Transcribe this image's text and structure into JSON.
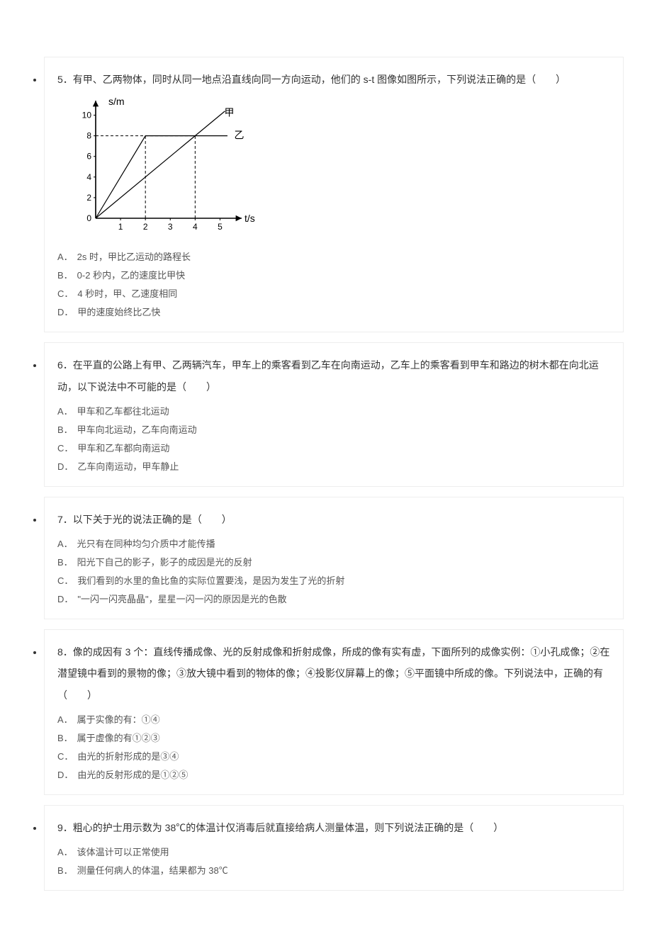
{
  "page_marker_color": "#cccccc",
  "border_color": "#eeeeee",
  "questions": [
    {
      "num": "5",
      "stem": "．有甲、乙两物体，同时从同一地点沿直线向同一方向运动，他们的 s-t 图像如图所示，下列说法正确的是（　　）",
      "has_chart": true,
      "chart": {
        "ylabel": "s/m",
        "xlabel": "t/s",
        "x_ticks": [
          1,
          2,
          3,
          4,
          5
        ],
        "y_ticks": [
          0,
          2,
          4,
          6,
          8,
          10
        ],
        "xlim": [
          0,
          5.7
        ],
        "ylim": [
          0,
          11
        ],
        "series": [
          {
            "name": "甲",
            "type": "line",
            "points": [
              [
                0,
                0
              ],
              [
                4,
                8
              ],
              [
                5.2,
                10.4
              ]
            ],
            "color": "#000000",
            "width": 1.2
          },
          {
            "name": "乙",
            "type": "piecewise",
            "points": [
              [
                0,
                0
              ],
              [
                2,
                8
              ],
              [
                5.3,
                8
              ]
            ],
            "color": "#000000",
            "width": 1.2
          }
        ],
        "guide_lines": [
          {
            "from": [
              0,
              8
            ],
            "to": [
              4,
              8
            ],
            "dash": true,
            "color": "#000000"
          },
          {
            "from": [
              2,
              0
            ],
            "to": [
              2,
              8
            ],
            "dash": true,
            "color": "#000000"
          },
          {
            "from": [
              4,
              0
            ],
            "to": [
              4,
              8
            ],
            "dash": true,
            "color": "#000000"
          }
        ],
        "label_positions": {
          "甲": [
            5.0,
            10.2
          ],
          "乙": [
            5.4,
            8.0
          ]
        },
        "axis_color": "#000000",
        "tick_fontsize": 12,
        "background": "#ffffff"
      },
      "options": [
        {
          "label": "A．",
          "text": "2s 时，甲比乙运动的路程长"
        },
        {
          "label": "B．",
          "text": "0-2 秒内，乙的速度比甲快"
        },
        {
          "label": "C．",
          "text": "4 秒时，甲、乙速度相同"
        },
        {
          "label": "D．",
          "text": "甲的速度始终比乙快"
        }
      ]
    },
    {
      "num": "6",
      "stem": "．在平直的公路上有甲、乙两辆汽车，甲车上的乘客看到乙车在向南运动，乙车上的乘客看到甲车和路边的树木都在向北运动，以下说法中不可能的是（　　）",
      "has_chart": false,
      "options": [
        {
          "label": "A．",
          "text": "甲车和乙车都往北运动"
        },
        {
          "label": "B．",
          "text": "甲车向北运动，乙车向南运动"
        },
        {
          "label": "C．",
          "text": "甲车和乙车都向南运动"
        },
        {
          "label": "D．",
          "text": "乙车向南运动，甲车静止"
        }
      ]
    },
    {
      "num": "7",
      "stem": "．以下关于光的说法正确的是（　　）",
      "has_chart": false,
      "options": [
        {
          "label": "A．",
          "text": "光只有在同种均匀介质中才能传播"
        },
        {
          "label": "B．",
          "text": "阳光下自己的影子，影子的成因是光的反射"
        },
        {
          "label": "C．",
          "text": "我们看到的水里的鱼比鱼的实际位置要浅，是因为发生了光的折射"
        },
        {
          "label": "D．",
          "text": "\"一闪一闪亮晶晶\"，星星一闪一闪的原因是光的色散"
        }
      ]
    },
    {
      "num": "8",
      "stem": "．像的成因有 3 个：直线传播成像、光的反射成像和折射成像，所成的像有实有虚，下面所列的成像实例：①小孔成像；②在潜望镜中看到的景物的像；③放大镜中看到的物体的像；④投影仪屏幕上的像；⑤平面镜中所成的像。下列说法中，正确的有（　　）",
      "has_chart": false,
      "options": [
        {
          "label": "A．",
          "text": "属于实像的有：①④"
        },
        {
          "label": "B．",
          "text": "属于虚像的有①②③"
        },
        {
          "label": "C．",
          "text": "由光的折射形成的是③④"
        },
        {
          "label": "D．",
          "text": "由光的反射形成的是①②⑤"
        }
      ]
    },
    {
      "num": "9",
      "stem": "．粗心的护士用示数为 38℃的体温计仅消毒后就直接给病人测量体温，则下列说法正确的是（　　）",
      "has_chart": false,
      "options": [
        {
          "label": "A．",
          "text": "该体温计可以正常使用"
        },
        {
          "label": "B．",
          "text": "测量任何病人的体温，结果都为 38℃"
        }
      ]
    }
  ]
}
